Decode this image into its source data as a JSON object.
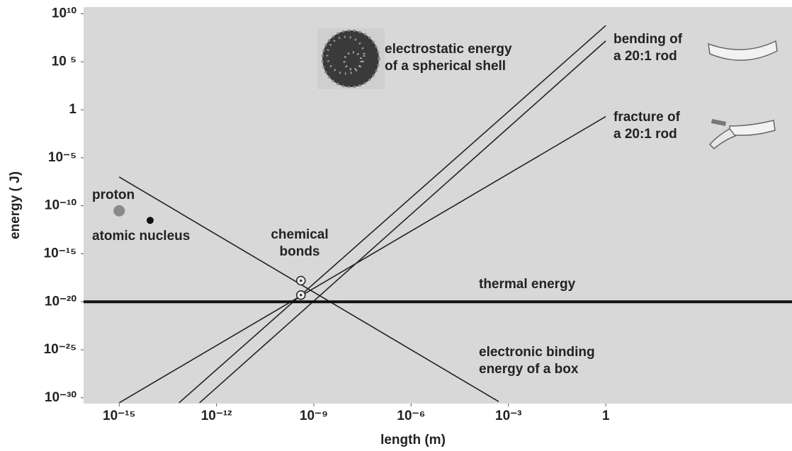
{
  "chart_data": {
    "type": "line",
    "x_label": "length (m)",
    "y_label": "energy ( J)",
    "xscale": "log",
    "yscale": "log",
    "xlim": [
      8e-17,
      550000
    ],
    "ylim": [
      2.5e-31,
      50000000000.0
    ],
    "xticks": [
      {
        "value": 1e-15,
        "label": "10⁻¹⁵"
      },
      {
        "value": 1e-12,
        "label": "10⁻¹²"
      },
      {
        "value": 1e-09,
        "label": "10⁻⁹"
      },
      {
        "value": 1e-06,
        "label": "10⁻⁶"
      },
      {
        "value": 0.001,
        "label": "10⁻³"
      },
      1
    ],
    "yticks": [
      {
        "value": 10000000000.0,
        "label": "10¹⁰"
      },
      {
        "value": 100000.0,
        "label": "10 ⁵"
      },
      1,
      {
        "value": 1e-05,
        "label": "10⁻⁵"
      },
      {
        "value": 1e-10,
        "label": "10⁻¹⁰"
      },
      {
        "value": 1e-15,
        "label": "10⁻¹⁵"
      },
      {
        "value": 1e-20,
        "label": "10⁻²⁰"
      },
      {
        "value": 1e-25,
        "label": "10⁻²⁵"
      },
      {
        "value": 1e-30,
        "label": "10⁻³⁰"
      }
    ],
    "series": [
      {
        "name": "electrostatic energy of a spherical shell",
        "color": "#222222",
        "style": "line",
        "x": [
          7e-14,
          1
        ],
        "values": [
          3e-31,
          600000000.0
        ]
      },
      {
        "name": "bending of a 20:1 rod",
        "color": "#222222",
        "style": "line",
        "x": [
          3e-13,
          1
        ],
        "values": [
          3e-31,
          15000000.0
        ]
      },
      {
        "name": "fracture of a 20:1 rod",
        "color": "#222222",
        "style": "line",
        "x": [
          1e-15,
          1
        ],
        "values": [
          3e-31,
          0.2
        ]
      },
      {
        "name": "electronic binding energy of a box",
        "color": "#222222",
        "style": "line",
        "x": [
          1e-15,
          0.0005
        ],
        "values": [
          1e-07,
          4e-31
        ]
      },
      {
        "name": "thermal energy",
        "color": "#111111",
        "style": "thick-line",
        "x": [
          8e-17,
          550000
        ],
        "values": [
          1e-20,
          1e-20
        ]
      },
      {
        "name": "proton",
        "color": "#8a8a8a",
        "style": "point",
        "x": [
          1e-15
        ],
        "values": [
          3e-11
        ]
      },
      {
        "name": "atomic nucleus",
        "color": "#111111",
        "style": "point",
        "x": [
          9e-15
        ],
        "values": [
          3e-12
        ]
      },
      {
        "name": "chemical bonds",
        "color": "#222222",
        "style": "open-point",
        "x": [
          4e-10,
          4e-10
        ],
        "values": [
          1.6e-18,
          5e-20
        ]
      }
    ]
  }
}
